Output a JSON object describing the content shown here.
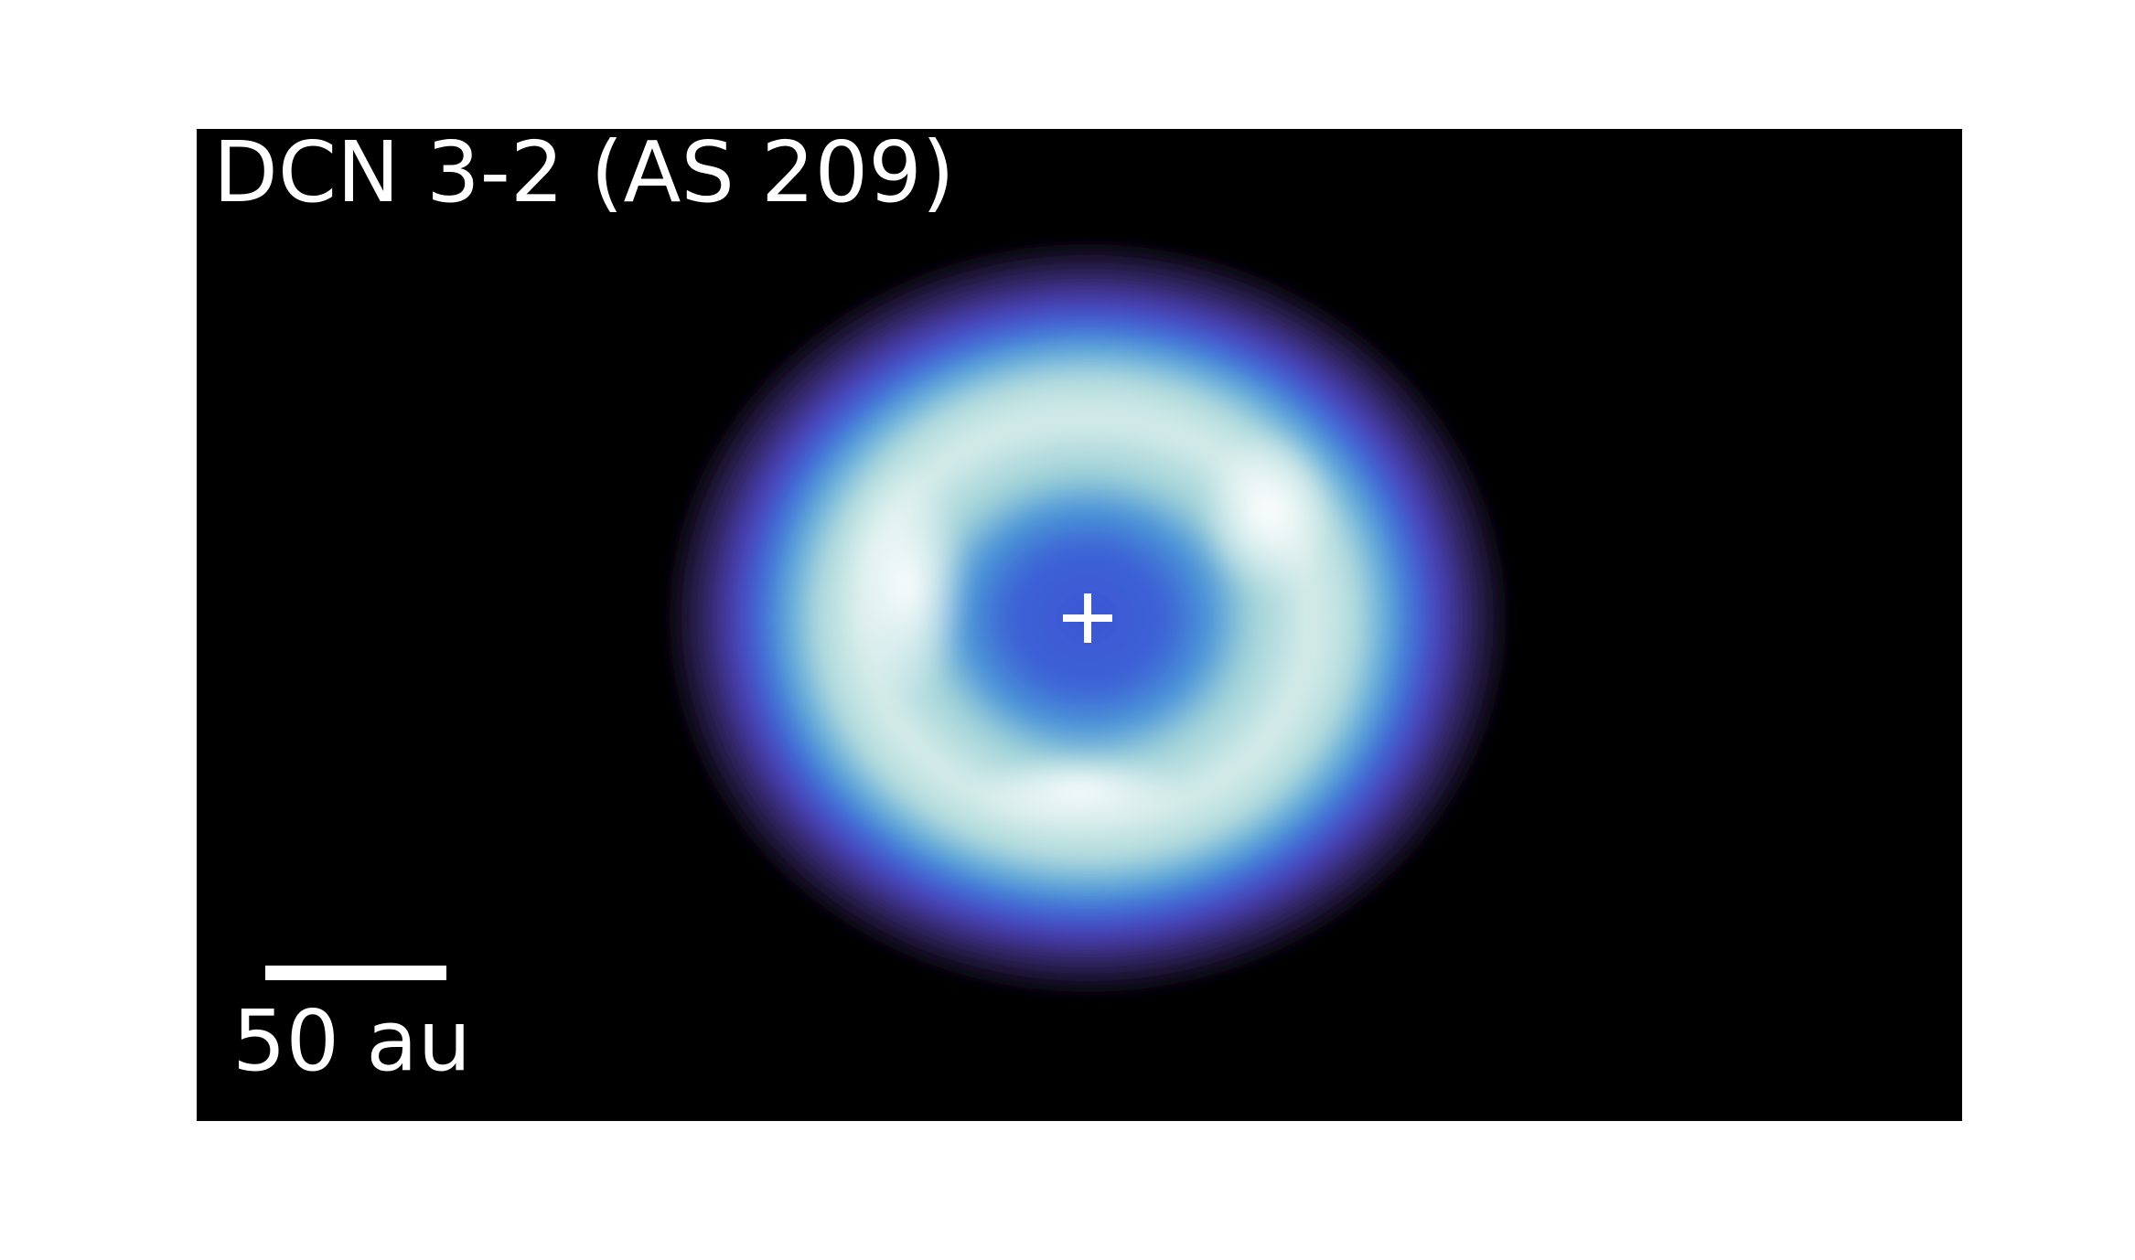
{
  "title": "DCN 3-2 (AS 209)",
  "scale_bar": {
    "label": "50 au"
  }
}
